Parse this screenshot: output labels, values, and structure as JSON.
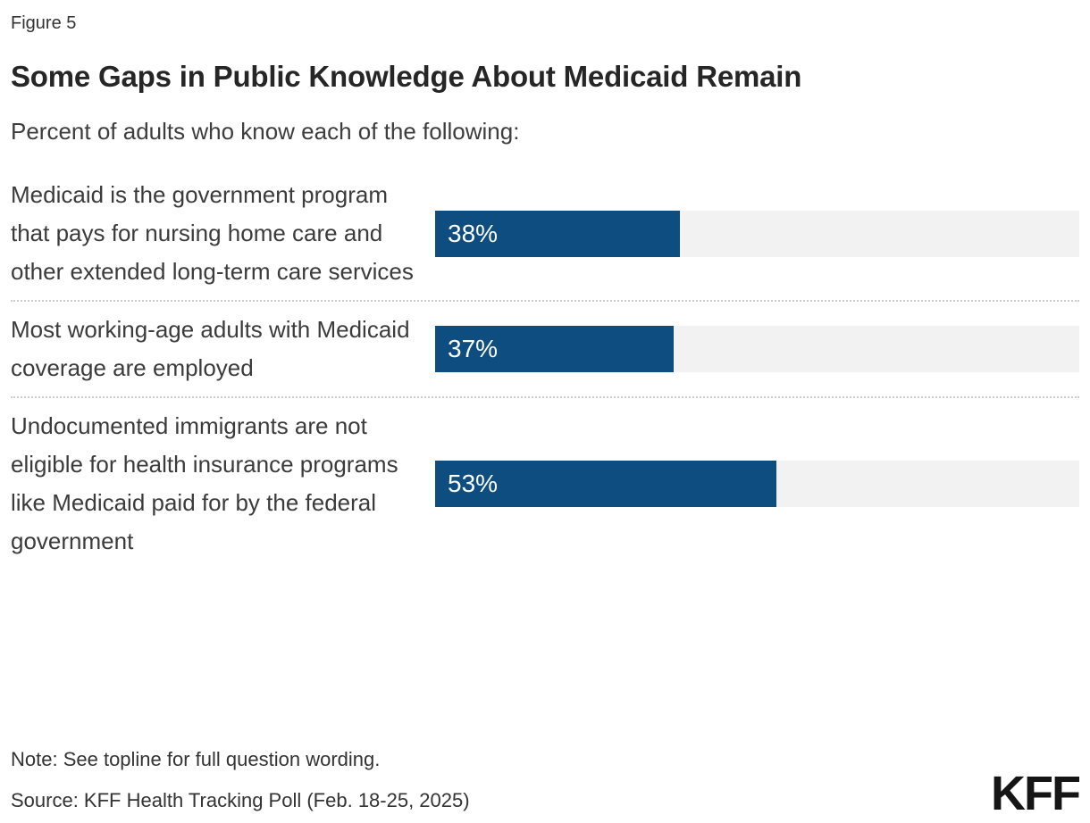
{
  "figure_label": "Figure 5",
  "title": "Some Gaps in Public Knowledge About Medicaid Remain",
  "subtitle": "Percent of adults who know each of the following:",
  "chart_data": {
    "type": "bar",
    "orientation": "horizontal",
    "categories": [
      "Medicaid is the government program that pays for nursing home care and other extended long-term care services",
      "Most working-age adults with Medicaid coverage are employed",
      "Undocumented immigrants are not eligible for health insurance programs like Medicaid paid for by the federal government"
    ],
    "values": [
      38,
      37,
      53
    ],
    "value_labels": [
      "38%",
      "37%",
      "53%"
    ],
    "xlim": [
      0,
      100
    ],
    "bar_color": "#0d4d80",
    "track_color": "#f2f2f2",
    "value_label_color": "#ffffff",
    "grid": "off",
    "legend": "none"
  },
  "note": "Note: See topline for full question wording.",
  "source": "Source: KFF Health Tracking Poll (Feb. 18-25, 2025)",
  "logo_text": "KFF"
}
